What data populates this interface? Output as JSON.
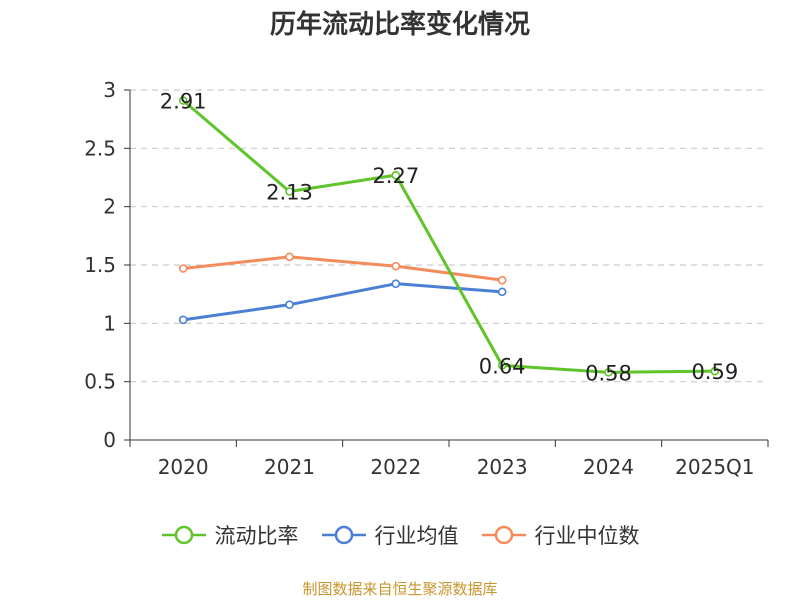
{
  "chart_data": {
    "type": "line",
    "title": "历年流动比率变化情况",
    "categories": [
      "2020",
      "2021",
      "2022",
      "2023",
      "2024",
      "2025Q1"
    ],
    "ylim": [
      0,
      3
    ],
    "yticks": [
      "0",
      "0.5",
      "1",
      "1.5",
      "2",
      "2.5",
      "3"
    ],
    "grid": true,
    "legend_position": "bottom",
    "series": [
      {
        "name": "流动比率",
        "color": "#5fc42a",
        "show_labels": true,
        "values": [
          2.91,
          2.13,
          2.27,
          0.64,
          0.58,
          0.59
        ],
        "labels": [
          "2.91",
          "2.13",
          "2.27",
          "0.64",
          "0.58",
          "0.59"
        ]
      },
      {
        "name": "行业均值",
        "color": "#4a7fd4",
        "show_labels": false,
        "values": [
          1.03,
          1.16,
          1.34,
          1.27,
          null,
          null
        ]
      },
      {
        "name": "行业中位数",
        "color": "#f38b5a",
        "show_labels": false,
        "values": [
          1.47,
          1.57,
          1.49,
          1.37,
          null,
          null
        ]
      }
    ]
  },
  "footer": {
    "source": "制图数据来自恒生聚源数据库"
  }
}
